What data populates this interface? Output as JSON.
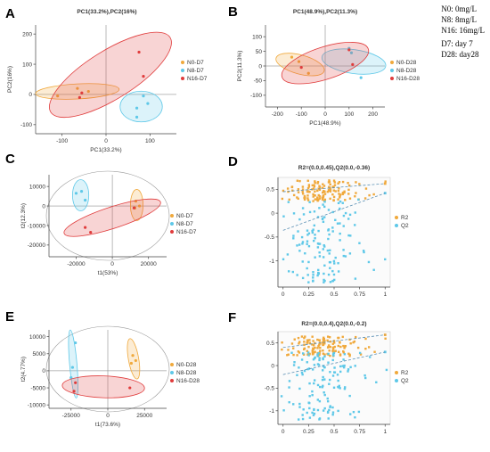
{
  "notes": [
    "N0: 0mg/L",
    "N8: 8mg/L",
    "N16: 16mg/L",
    "D7:  day 7",
    "D28:  day28"
  ],
  "colors": {
    "N0": "#f0a93c",
    "N8": "#5ec8e8",
    "N16": "#e03c3c",
    "R2": "#f0a93c",
    "Q2": "#5ec8e8"
  },
  "chart_data": [
    {
      "panel": "A",
      "type": "scatter",
      "title": "PC1(33.2%),PC2(16%)",
      "xlabel": "PC1(33.2%)",
      "ylabel": "PC2(16%)",
      "xlim": [
        -160,
        160
      ],
      "ylim": [
        -130,
        230
      ],
      "xticks": [
        -100,
        0,
        100
      ],
      "yticks": [
        -100,
        0,
        100,
        200
      ],
      "legend_position": "right",
      "series": [
        {
          "name": "N0-D7",
          "color": "#f0a93c",
          "points": [
            [
              -110,
              -5
            ],
            [
              -65,
              20
            ],
            [
              -40,
              10
            ]
          ],
          "ellipse": {
            "cx": -65,
            "cy": 10,
            "rx": 95,
            "ry": 25,
            "rot": 3
          }
        },
        {
          "name": "N8-D7",
          "color": "#5ec8e8",
          "points": [
            [
              70,
              -45
            ],
            [
              95,
              -30
            ],
            [
              70,
              -75
            ],
            [
              85,
              -5
            ]
          ],
          "ellipse": {
            "cx": 80,
            "cy": -40,
            "rx": 35,
            "ry": 70,
            "rot": 90
          }
        },
        {
          "name": "N16-D7",
          "color": "#e03c3c",
          "points": [
            [
              75,
              140
            ],
            [
              85,
              60
            ],
            [
              -60,
              -10
            ],
            [
              -55,
              5
            ]
          ],
          "ellipse": {
            "cx": 10,
            "cy": 65,
            "rx": 160,
            "ry": 80,
            "rot": 32
          }
        }
      ]
    },
    {
      "panel": "B",
      "type": "scatter",
      "title": "PC1(48.9%),PC2(11.3%)",
      "xlabel": "PC1(48.9%)",
      "ylabel": "PC2(11.3%)",
      "xlim": [
        -250,
        250
      ],
      "ylim": [
        -140,
        140
      ],
      "xticks": [
        -200,
        -100,
        0,
        100,
        200
      ],
      "yticks": [
        -100,
        -50,
        0,
        50,
        100
      ],
      "legend_position": "right",
      "series": [
        {
          "name": "N0-D28",
          "color": "#f0a93c",
          "points": [
            [
              -140,
              30
            ],
            [
              -110,
              15
            ],
            [
              -70,
              -25
            ]
          ],
          "ellipse": {
            "cx": -105,
            "cy": 5,
            "rx": 40,
            "ry": 85,
            "rot": 75
          }
        },
        {
          "name": "N8-D28",
          "color": "#5ec8e8",
          "points": [
            [
              100,
              60
            ],
            [
              110,
              45
            ],
            [
              150,
              -40
            ]
          ],
          "ellipse": {
            "cx": 120,
            "cy": 15,
            "rx": 50,
            "ry": 110,
            "rot": 82
          }
        },
        {
          "name": "N16-D28",
          "color": "#e03c3c",
          "points": [
            [
              -100,
              -5
            ],
            [
              100,
              55
            ],
            [
              115,
              5
            ]
          ],
          "ellipse": {
            "cx": 0,
            "cy": 10,
            "rx": 190,
            "ry": 55,
            "rot": 18
          }
        }
      ]
    },
    {
      "panel": "C",
      "type": "scatter",
      "title": "",
      "xlabel": "t1(53%)",
      "ylabel": "t2(12.3%)",
      "xlim": [
        -35000,
        30000
      ],
      "ylim": [
        -26000,
        16000
      ],
      "xticks": [
        -20000,
        0,
        20000
      ],
      "yticks": [
        -20000,
        -10000,
        0,
        10000
      ],
      "legend_position": "right",
      "series": [
        {
          "name": "N0-D7",
          "color": "#f0a93c",
          "points": [
            [
              13000,
              2500
            ],
            [
              15000,
              0
            ],
            [
              12500,
              -1000
            ]
          ],
          "ellipse": {
            "cx": 13500,
            "cy": 500,
            "rx": 3500,
            "ry": 8000,
            "rot": 0
          }
        },
        {
          "name": "N8-D7",
          "color": "#5ec8e8",
          "points": [
            [
              -20000,
              6500
            ],
            [
              -17000,
              7500
            ],
            [
              -15000,
              3000
            ]
          ],
          "ellipse": {
            "cx": -17500,
            "cy": 5500,
            "rx": 4500,
            "ry": 8000,
            "rot": 0
          }
        },
        {
          "name": "N16-D7",
          "color": "#e03c3c",
          "points": [
            [
              -15000,
              -11000
            ],
            [
              -12000,
              -13500
            ],
            [
              12000,
              -1000
            ]
          ],
          "ellipse": {
            "cx": 0,
            "cy": -6000,
            "rx": 28000,
            "ry": 5500,
            "rot": 18
          }
        }
      ]
    },
    {
      "panel": "D",
      "type": "scatter",
      "title": "R2=(0.0,0.45),Q2(0.0,-0.36)",
      "xlabel": "",
      "ylabel": "",
      "xlim": [
        -0.05,
        1.05
      ],
      "ylim": [
        -1.55,
        0.75
      ],
      "xticks": [
        0,
        0.25,
        0.5,
        0.75,
        1
      ],
      "xticklabels": [
        "0",
        "0.25",
        "0.5",
        "0.75",
        "1"
      ],
      "yticks": [
        -1,
        -0.5,
        0,
        0.5
      ],
      "legend_position": "right",
      "series": [
        {
          "name": "R2",
          "color": "#f0a93c",
          "cluster": {
            "ymin": 0.25,
            "ymax": 0.7
          },
          "trend": [
            [
              0,
              0.45
            ],
            [
              1,
              0.62
            ]
          ]
        },
        {
          "name": "Q2",
          "color": "#5ec8e8",
          "cluster": {
            "ymin": -1.45,
            "ymax": 0.3
          },
          "trend": [
            [
              0,
              -0.36
            ],
            [
              1,
              0.42
            ]
          ]
        }
      ]
    },
    {
      "panel": "E",
      "type": "scatter",
      "title": "",
      "xlabel": "t1(73.6%)",
      "ylabel": "t2(4.77%)",
      "xlim": [
        -40000,
        40000
      ],
      "ylim": [
        -11000,
        12000
      ],
      "xticks": [
        -25000,
        0,
        25000
      ],
      "yticks": [
        -10000,
        -5000,
        0,
        5000,
        10000
      ],
      "legend_position": "right",
      "series": [
        {
          "name": "N0-D28",
          "color": "#f0a93c",
          "points": [
            [
              17000,
              4500
            ],
            [
              19000,
              3000
            ],
            [
              16000,
              2200
            ]
          ],
          "ellipse": {
            "cx": 17500,
            "cy": 3500,
            "rx": 3500,
            "ry": 6000,
            "rot": 10
          }
        },
        {
          "name": "N8-D28",
          "color": "#5ec8e8",
          "points": [
            [
              -22000,
              8200
            ],
            [
              -24000,
              1000
            ],
            [
              -25000,
              -2000
            ]
          ],
          "ellipse": {
            "cx": -23500,
            "cy": 2000,
            "rx": 2500,
            "ry": 10000,
            "rot": 5
          }
        },
        {
          "name": "N16-D28",
          "color": "#e03c3c",
          "points": [
            [
              -22000,
              -3500
            ],
            [
              -23000,
              -6000
            ],
            [
              15000,
              -5000
            ]
          ],
          "ellipse": {
            "cx": -3000,
            "cy": -4700,
            "rx": 28000,
            "ry": 3200,
            "rot": -2
          }
        }
      ]
    },
    {
      "panel": "F",
      "type": "scatter",
      "title": "R2=(0.0,0.4),Q2(0.0,-0.2)",
      "xlabel": "",
      "ylabel": "",
      "xlim": [
        -0.05,
        1.05
      ],
      "ylim": [
        -1.3,
        0.75
      ],
      "xticks": [
        0,
        0.25,
        0.5,
        0.75,
        1
      ],
      "xticklabels": [
        "0",
        "0.25",
        "0.5",
        "0.75",
        "1"
      ],
      "yticks": [
        -1,
        -0.5,
        0,
        0.5
      ],
      "legend_position": "right",
      "series": [
        {
          "name": "R2",
          "color": "#f0a93c",
          "cluster": {
            "ymin": 0.2,
            "ymax": 0.65
          },
          "trend": [
            [
              0,
              0.4
            ],
            [
              1,
              0.68
            ]
          ]
        },
        {
          "name": "Q2",
          "color": "#5ec8e8",
          "cluster": {
            "ymin": -1.2,
            "ymax": 0.3
          },
          "trend": [
            [
              0,
              -0.2
            ],
            [
              1,
              0.3
            ]
          ]
        }
      ]
    }
  ]
}
